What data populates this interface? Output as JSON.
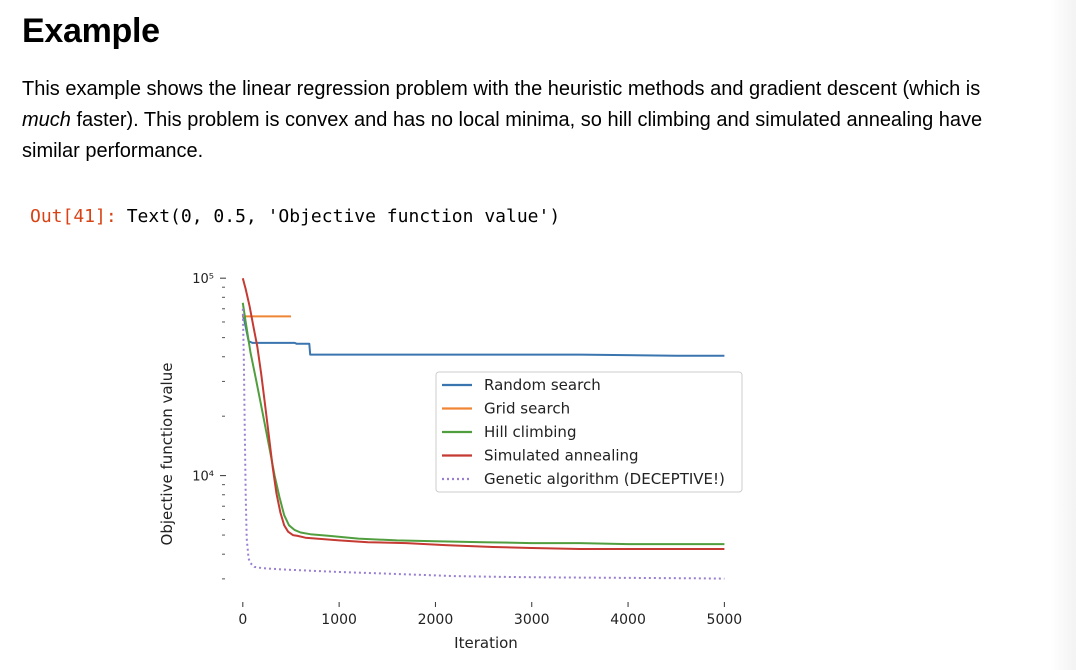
{
  "section": {
    "heading": "Example",
    "paragraph": {
      "part1": "This example shows the linear regression problem with the heuristic methods and gradient descent (which is",
      "emph": "much",
      "part2": " faster). This problem is convex and has no local minima, so hill climbing and simulated annealing have",
      "part3": "similar performance."
    }
  },
  "output": {
    "prompt": "Out[41]:",
    "text": "Text(0, 0.5, 'Objective function value')"
  },
  "chart_data": {
    "type": "line",
    "xlabel": "Iteration",
    "ylabel": "Objective function value",
    "xlim": [
      -50,
      5100
    ],
    "ylim": [
      2400,
      110000
    ],
    "yscale": "log",
    "grid": false,
    "legend_position": "center-right",
    "x_ticks": [
      0,
      1000,
      2000,
      3000,
      4000,
      5000
    ],
    "x_tick_labels": [
      "0",
      "1000",
      "2000",
      "3000",
      "4000",
      "5000"
    ],
    "y_ticks": [
      10000,
      100000
    ],
    "y_tick_labels": [
      "10⁴",
      "10⁵"
    ],
    "series": [
      {
        "name": "Random search",
        "color": "#3b75af",
        "style": "solid",
        "x": [
          0,
          20,
          60,
          100,
          200,
          300,
          540,
          560,
          690,
          700,
          1500,
          2500,
          3500,
          4500,
          5000
        ],
        "y": [
          65000,
          60000,
          48000,
          47000,
          47000,
          47000,
          47000,
          46500,
          46500,
          41000,
          41000,
          41000,
          41000,
          40500,
          40500
        ]
      },
      {
        "name": "Grid search",
        "color": "#ef8636",
        "style": "solid",
        "x": [
          0,
          500
        ],
        "y": [
          64000,
          64000
        ]
      },
      {
        "name": "Hill climbing",
        "color": "#519e3e",
        "style": "solid",
        "x": [
          0,
          30,
          80,
          130,
          180,
          230,
          280,
          330,
          380,
          430,
          480,
          540,
          600,
          700,
          900,
          1200,
          1600,
          2000,
          2500,
          3000,
          3500,
          4000,
          4500,
          5000
        ],
        "y": [
          75000,
          60000,
          42000,
          32000,
          24000,
          18000,
          13500,
          10000,
          7800,
          6300,
          5600,
          5300,
          5150,
          5050,
          4950,
          4800,
          4700,
          4650,
          4600,
          4550,
          4550,
          4500,
          4500,
          4500
        ]
      },
      {
        "name": "Simulated annealing",
        "color": "#c53a32",
        "style": "solid",
        "x": [
          0,
          30,
          70,
          110,
          150,
          190,
          230,
          270,
          310,
          350,
          390,
          430,
          470,
          520,
          570,
          650,
          800,
          1000,
          1300,
          1700,
          2100,
          2600,
          3000,
          3500,
          4000,
          4500,
          5000
        ],
        "y": [
          100000,
          88000,
          72000,
          57000,
          45000,
          33000,
          23000,
          16000,
          11000,
          8100,
          6500,
          5600,
          5200,
          5000,
          4950,
          4850,
          4780,
          4700,
          4600,
          4550,
          4450,
          4350,
          4300,
          4250,
          4250,
          4250,
          4250
        ]
      },
      {
        "name": "Genetic algorithm (DECEPTIVE!)",
        "color": "#9a7fd1",
        "style": "dotted",
        "x": [
          0,
          10,
          20,
          30,
          40,
          60,
          80,
          120,
          200,
          400,
          700,
          1000,
          1400,
          1800,
          2200,
          2700,
          3200,
          3700,
          4200,
          4700,
          5000
        ],
        "y": [
          70000,
          40000,
          18000,
          8000,
          4800,
          3800,
          3600,
          3450,
          3400,
          3350,
          3300,
          3250,
          3200,
          3150,
          3100,
          3070,
          3050,
          3040,
          3030,
          3020,
          3010
        ]
      }
    ]
  }
}
